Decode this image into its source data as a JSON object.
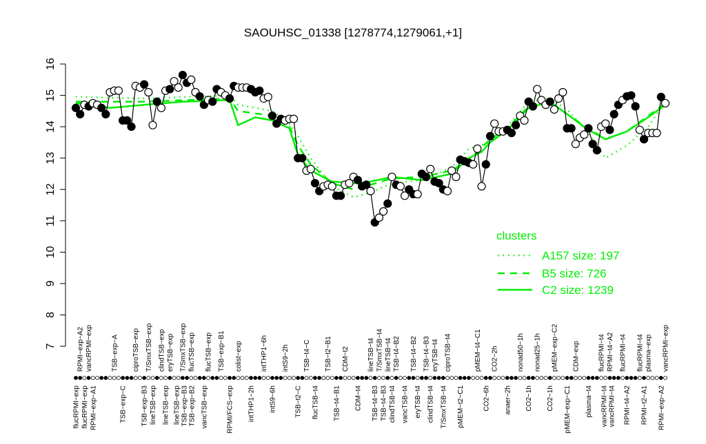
{
  "chart_data": {
    "type": "line",
    "title": "SAOUHSC_01338 [1278774,1279061,+1]",
    "xlabel": "",
    "ylabel": "",
    "ylim": [
      7,
      16
    ],
    "yticks": [
      7,
      8,
      9,
      10,
      11,
      12,
      13,
      14,
      15,
      16
    ],
    "grid": false,
    "legend": {
      "title": "clusters",
      "placement": "right",
      "entries": [
        {
          "label": "A157 size: 197",
          "style": "dotted"
        },
        {
          "label": "B5 size: 726",
          "style": "dashed"
        },
        {
          "label": "C2 size: 1239",
          "style": "solid"
        }
      ]
    },
    "colors": {
      "points": "#000000",
      "clusters": "#00ee00"
    },
    "points": [
      [
        14.6,
        1
      ],
      [
        14.4,
        1
      ],
      [
        14.7,
        0
      ],
      [
        14.65,
        1
      ],
      [
        14.75,
        0
      ],
      [
        14.7,
        0
      ],
      [
        14.6,
        1
      ],
      [
        14.4,
        1
      ],
      [
        15.1,
        0
      ],
      [
        15.15,
        0
      ],
      [
        15.15,
        0
      ],
      [
        14.2,
        1
      ],
      [
        14.2,
        1
      ],
      [
        14.0,
        1
      ],
      [
        15.3,
        0
      ],
      [
        15.25,
        0
      ],
      [
        15.35,
        1
      ],
      [
        15.1,
        0
      ],
      [
        14.05,
        0
      ],
      [
        14.8,
        1
      ],
      [
        14.6,
        0
      ],
      [
        15.15,
        0
      ],
      [
        15.2,
        1
      ],
      [
        15.45,
        0
      ],
      [
        15.25,
        0
      ],
      [
        15.65,
        1
      ],
      [
        15.4,
        1
      ],
      [
        15.5,
        0
      ],
      [
        15.1,
        0
      ],
      [
        14.97,
        1
      ],
      [
        14.7,
        1
      ],
      [
        14.85,
        0
      ],
      [
        14.8,
        1
      ],
      [
        15.2,
        1
      ],
      [
        15.1,
        0
      ],
      [
        15.0,
        0
      ],
      [
        14.9,
        1
      ],
      [
        15.3,
        1
      ],
      [
        15.25,
        0
      ],
      [
        15.25,
        0
      ],
      [
        15.25,
        0
      ],
      [
        15.2,
        1
      ],
      [
        15.1,
        1
      ],
      [
        15.15,
        1
      ],
      [
        14.9,
        0
      ],
      [
        14.95,
        0
      ],
      [
        14.35,
        1
      ],
      [
        14.1,
        1
      ],
      [
        14.25,
        1
      ],
      [
        14.2,
        0
      ],
      [
        14.25,
        0
      ],
      [
        14.25,
        0
      ],
      [
        13.0,
        1
      ],
      [
        13.0,
        1
      ],
      [
        12.6,
        0
      ],
      [
        12.65,
        0
      ],
      [
        12.2,
        1
      ],
      [
        11.95,
        1
      ],
      [
        12.1,
        0
      ],
      [
        12.15,
        0
      ],
      [
        12.1,
        0
      ],
      [
        11.8,
        1
      ],
      [
        11.8,
        1
      ],
      [
        12.15,
        0
      ],
      [
        12.2,
        0
      ],
      [
        12.4,
        0
      ],
      [
        12.3,
        1
      ],
      [
        12.1,
        1
      ],
      [
        12.15,
        1
      ],
      [
        11.95,
        0
      ],
      [
        10.95,
        1
      ],
      [
        11.1,
        0
      ],
      [
        11.3,
        0
      ],
      [
        11.55,
        1
      ],
      [
        12.4,
        0
      ],
      [
        12.15,
        1
      ],
      [
        12.1,
        0
      ],
      [
        11.8,
        0
      ],
      [
        12.0,
        1
      ],
      [
        11.85,
        1
      ],
      [
        11.85,
        0
      ],
      [
        12.5,
        1
      ],
      [
        12.4,
        1
      ],
      [
        12.65,
        0
      ],
      [
        12.25,
        1
      ],
      [
        12.2,
        1
      ],
      [
        12.0,
        1
      ],
      [
        11.95,
        0
      ],
      [
        12.6,
        0
      ],
      [
        12.4,
        0
      ],
      [
        12.95,
        1
      ],
      [
        12.9,
        1
      ],
      [
        12.85,
        1
      ],
      [
        12.8,
        0
      ],
      [
        13.3,
        0
      ],
      [
        12.1,
        0
      ],
      [
        12.8,
        1
      ],
      [
        13.7,
        1
      ],
      [
        14.1,
        0
      ],
      [
        13.85,
        0
      ],
      [
        13.85,
        0
      ],
      [
        13.9,
        1
      ],
      [
        13.8,
        1
      ],
      [
        14.05,
        1
      ],
      [
        14.35,
        0
      ],
      [
        14.2,
        0
      ],
      [
        14.8,
        1
      ],
      [
        14.65,
        1
      ],
      [
        15.2,
        0
      ],
      [
        14.85,
        0
      ],
      [
        14.7,
        0
      ],
      [
        14.8,
        1
      ],
      [
        14.55,
        0
      ],
      [
        14.9,
        0
      ],
      [
        15.1,
        0
      ],
      [
        13.95,
        1
      ],
      [
        13.95,
        1
      ],
      [
        13.45,
        0
      ],
      [
        13.65,
        0
      ],
      [
        13.75,
        0
      ],
      [
        13.95,
        1
      ],
      [
        13.45,
        1
      ],
      [
        13.25,
        1
      ],
      [
        14.0,
        0
      ],
      [
        14.1,
        0
      ],
      [
        13.9,
        1
      ],
      [
        14.4,
        1
      ],
      [
        14.7,
        1
      ],
      [
        14.85,
        0
      ],
      [
        14.97,
        1
      ],
      [
        15.0,
        1
      ],
      [
        14.65,
        1
      ],
      [
        13.9,
        0
      ],
      [
        13.6,
        1
      ],
      [
        13.8,
        0
      ],
      [
        13.8,
        0
      ],
      [
        13.8,
        0
      ],
      [
        14.95,
        1
      ],
      [
        14.75,
        0
      ]
    ],
    "bottom_labels": [
      {
        "i": 0,
        "text": "flucRPMI−exp"
      },
      {
        "i": 2,
        "text": "flucRPMI−exp"
      },
      {
        "i": 4,
        "text": "RPMI−exp−A1"
      },
      {
        "i": 11,
        "text": "TSB−exp−C"
      },
      {
        "i": 16,
        "text": "TSB−exp−B3"
      },
      {
        "i": 18,
        "text": "lineTSB−exp"
      },
      {
        "i": 21,
        "text": "lineTSB−exp"
      },
      {
        "i": 24,
        "text": "lineTSB−exp"
      },
      {
        "i": 25,
        "text": "TSB−exp−B3"
      },
      {
        "i": 27,
        "text": "TSB−exp−B2"
      },
      {
        "i": 30,
        "text": "vancTSB−exp"
      },
      {
        "i": 36,
        "text": "RPMI/FCS−exp"
      },
      {
        "i": 41,
        "text": "intTHP1−2h"
      },
      {
        "i": 46,
        "text": "intS9−6h"
      },
      {
        "i": 52,
        "text": "TSB−t2−C"
      },
      {
        "i": 56,
        "text": "flucTSB−t4"
      },
      {
        "i": 61,
        "text": "TSB−t4−B1"
      },
      {
        "i": 66,
        "text": "CDM−t4"
      },
      {
        "i": 70,
        "text": "TSB−t4−B3"
      },
      {
        "i": 72,
        "text": "TSB−t4−B3"
      },
      {
        "i": 74,
        "text": "clindTSB−t4"
      },
      {
        "i": 77,
        "text": "vancTSB−t4"
      },
      {
        "i": 80,
        "text": "eryTSB−t4"
      },
      {
        "i": 83,
        "text": "clindTSB−t4"
      },
      {
        "i": 86,
        "text": "T/SmxTSB−t4"
      },
      {
        "i": 90,
        "text": "pMEM−t2−C1"
      },
      {
        "i": 96,
        "text": "CO2−6h"
      },
      {
        "i": 101,
        "text": "anaer−2h"
      },
      {
        "i": 106,
        "text": "CO2−1h"
      },
      {
        "i": 111,
        "text": "CO2−1h"
      },
      {
        "i": 115,
        "text": "pMEM−exp−C1"
      },
      {
        "i": 120,
        "text": "plasma−t4"
      },
      {
        "i": 124,
        "text": "vancRPMI−t4"
      },
      {
        "i": 125,
        "text": "vancRPMI−t4"
      },
      {
        "i": 129,
        "text": "RPMI−t4−A2"
      },
      {
        "i": 133,
        "text": "RPMI−t2−A1"
      },
      {
        "i": 137,
        "text": "RPMI−exp−A2"
      }
    ],
    "top_labels": [
      {
        "i": 1,
        "text": "RPMI−exp−A2"
      },
      {
        "i": 3,
        "text": "vancRPMI−exp"
      },
      {
        "i": 9,
        "text": "TSB−exp−A"
      },
      {
        "i": 14,
        "text": "ciproTSB−exp"
      },
      {
        "i": 17,
        "text": "T/SmxTSB−exp"
      },
      {
        "i": 20,
        "text": "clindTSB−exp"
      },
      {
        "i": 22,
        "text": "eryTSB−exp"
      },
      {
        "i": 25,
        "text": "T/SmxTSB−exp"
      },
      {
        "i": 27,
        "text": "flucTSB−exp"
      },
      {
        "i": 31,
        "text": "flucTSB−exp"
      },
      {
        "i": 34,
        "text": "TSB−exp−B1"
      },
      {
        "i": 38,
        "text": "colist−exp"
      },
      {
        "i": 44,
        "text": "intTHP1−6h"
      },
      {
        "i": 49,
        "text": "intS9−2h"
      },
      {
        "i": 54,
        "text": "TSB−t4−C"
      },
      {
        "i": 59,
        "text": "TSB−t2−B1"
      },
      {
        "i": 63,
        "text": "CDM−t2"
      },
      {
        "i": 69,
        "text": "lineTSB−t4"
      },
      {
        "i": 71,
        "text": "T/SmxTSB−t4"
      },
      {
        "i": 73,
        "text": "lineTSB−t4"
      },
      {
        "i": 75,
        "text": "TSB−t4−B2"
      },
      {
        "i": 79,
        "text": "TSB−t4−B2"
      },
      {
        "i": 82,
        "text": "TSB−t4−B3"
      },
      {
        "i": 84,
        "text": "eryTSB−t4"
      },
      {
        "i": 87,
        "text": "ciproTSB−t4"
      },
      {
        "i": 94,
        "text": "pMEM−t4−C1"
      },
      {
        "i": 98,
        "text": "CO2−2h"
      },
      {
        "i": 104,
        "text": "nonad50−1h"
      },
      {
        "i": 108,
        "text": "nonad25−1h"
      },
      {
        "i": 112,
        "text": "pMEM−exp−C2"
      },
      {
        "i": 117,
        "text": "CDM−exp"
      },
      {
        "i": 123,
        "text": "flucRPMI−t4"
      },
      {
        "i": 125,
        "text": "RPMI−t4−A2"
      },
      {
        "i": 128,
        "text": "flucRPMI−t4"
      },
      {
        "i": 132,
        "text": "flucRPMI−t4"
      },
      {
        "i": 134,
        "text": "plasma−exp"
      },
      {
        "i": 138,
        "text": "vancRPMI−exp"
      }
    ],
    "cluster_series": [
      {
        "name": "A157",
        "style": "dotted",
        "anchors": [
          [
            0,
            14.95
          ],
          [
            16,
            14.9
          ],
          [
            36,
            15.0
          ],
          [
            38,
            14.7
          ],
          [
            46,
            14.5
          ],
          [
            50,
            14.1
          ],
          [
            52,
            13.7
          ],
          [
            55,
            13.0
          ],
          [
            60,
            12.1
          ],
          [
            65,
            11.75
          ],
          [
            69,
            11.9
          ],
          [
            74,
            12.2
          ],
          [
            81,
            12.3
          ],
          [
            88,
            12.7
          ],
          [
            92,
            13.3
          ],
          [
            97,
            13.5
          ],
          [
            101,
            14.0
          ],
          [
            106,
            14.8
          ],
          [
            111,
            14.9
          ],
          [
            115,
            14.55
          ],
          [
            120,
            13.8
          ],
          [
            124,
            13.0
          ],
          [
            129,
            13.4
          ],
          [
            134,
            14.0
          ],
          [
            138,
            14.8
          ]
        ]
      },
      {
        "name": "B5",
        "style": "dashed",
        "anchors": [
          [
            0,
            14.8
          ],
          [
            16,
            14.8
          ],
          [
            36,
            14.9
          ],
          [
            38,
            14.5
          ],
          [
            46,
            14.35
          ],
          [
            50,
            14.0
          ],
          [
            52,
            13.4
          ],
          [
            55,
            12.8
          ],
          [
            60,
            12.2
          ],
          [
            65,
            12.0
          ],
          [
            69,
            12.15
          ],
          [
            74,
            12.35
          ],
          [
            81,
            12.4
          ],
          [
            88,
            12.6
          ],
          [
            92,
            12.95
          ],
          [
            97,
            13.6
          ],
          [
            101,
            13.95
          ],
          [
            106,
            14.65
          ],
          [
            111,
            14.8
          ],
          [
            115,
            14.4
          ],
          [
            120,
            13.95
          ],
          [
            124,
            13.6
          ],
          [
            129,
            13.85
          ],
          [
            134,
            14.35
          ],
          [
            138,
            14.75
          ]
        ]
      },
      {
        "name": "C2",
        "style": "solid",
        "anchors": [
          [
            0,
            14.75
          ],
          [
            8,
            14.6
          ],
          [
            16,
            14.7
          ],
          [
            25,
            14.8
          ],
          [
            36,
            14.85
          ],
          [
            38,
            14.05
          ],
          [
            42,
            14.3
          ],
          [
            46,
            14.2
          ],
          [
            50,
            13.95
          ],
          [
            52,
            13.1
          ],
          [
            55,
            12.6
          ],
          [
            60,
            12.25
          ],
          [
            65,
            12.2
          ],
          [
            69,
            12.25
          ],
          [
            74,
            12.4
          ],
          [
            81,
            12.3
          ],
          [
            88,
            12.5
          ],
          [
            92,
            13.0
          ],
          [
            95,
            13.2
          ],
          [
            97,
            13.5
          ],
          [
            101,
            13.9
          ],
          [
            106,
            14.6
          ],
          [
            111,
            14.8
          ],
          [
            115,
            14.4
          ],
          [
            120,
            13.9
          ],
          [
            124,
            13.6
          ],
          [
            129,
            13.85
          ],
          [
            134,
            14.3
          ],
          [
            138,
            14.7
          ]
        ]
      }
    ]
  }
}
